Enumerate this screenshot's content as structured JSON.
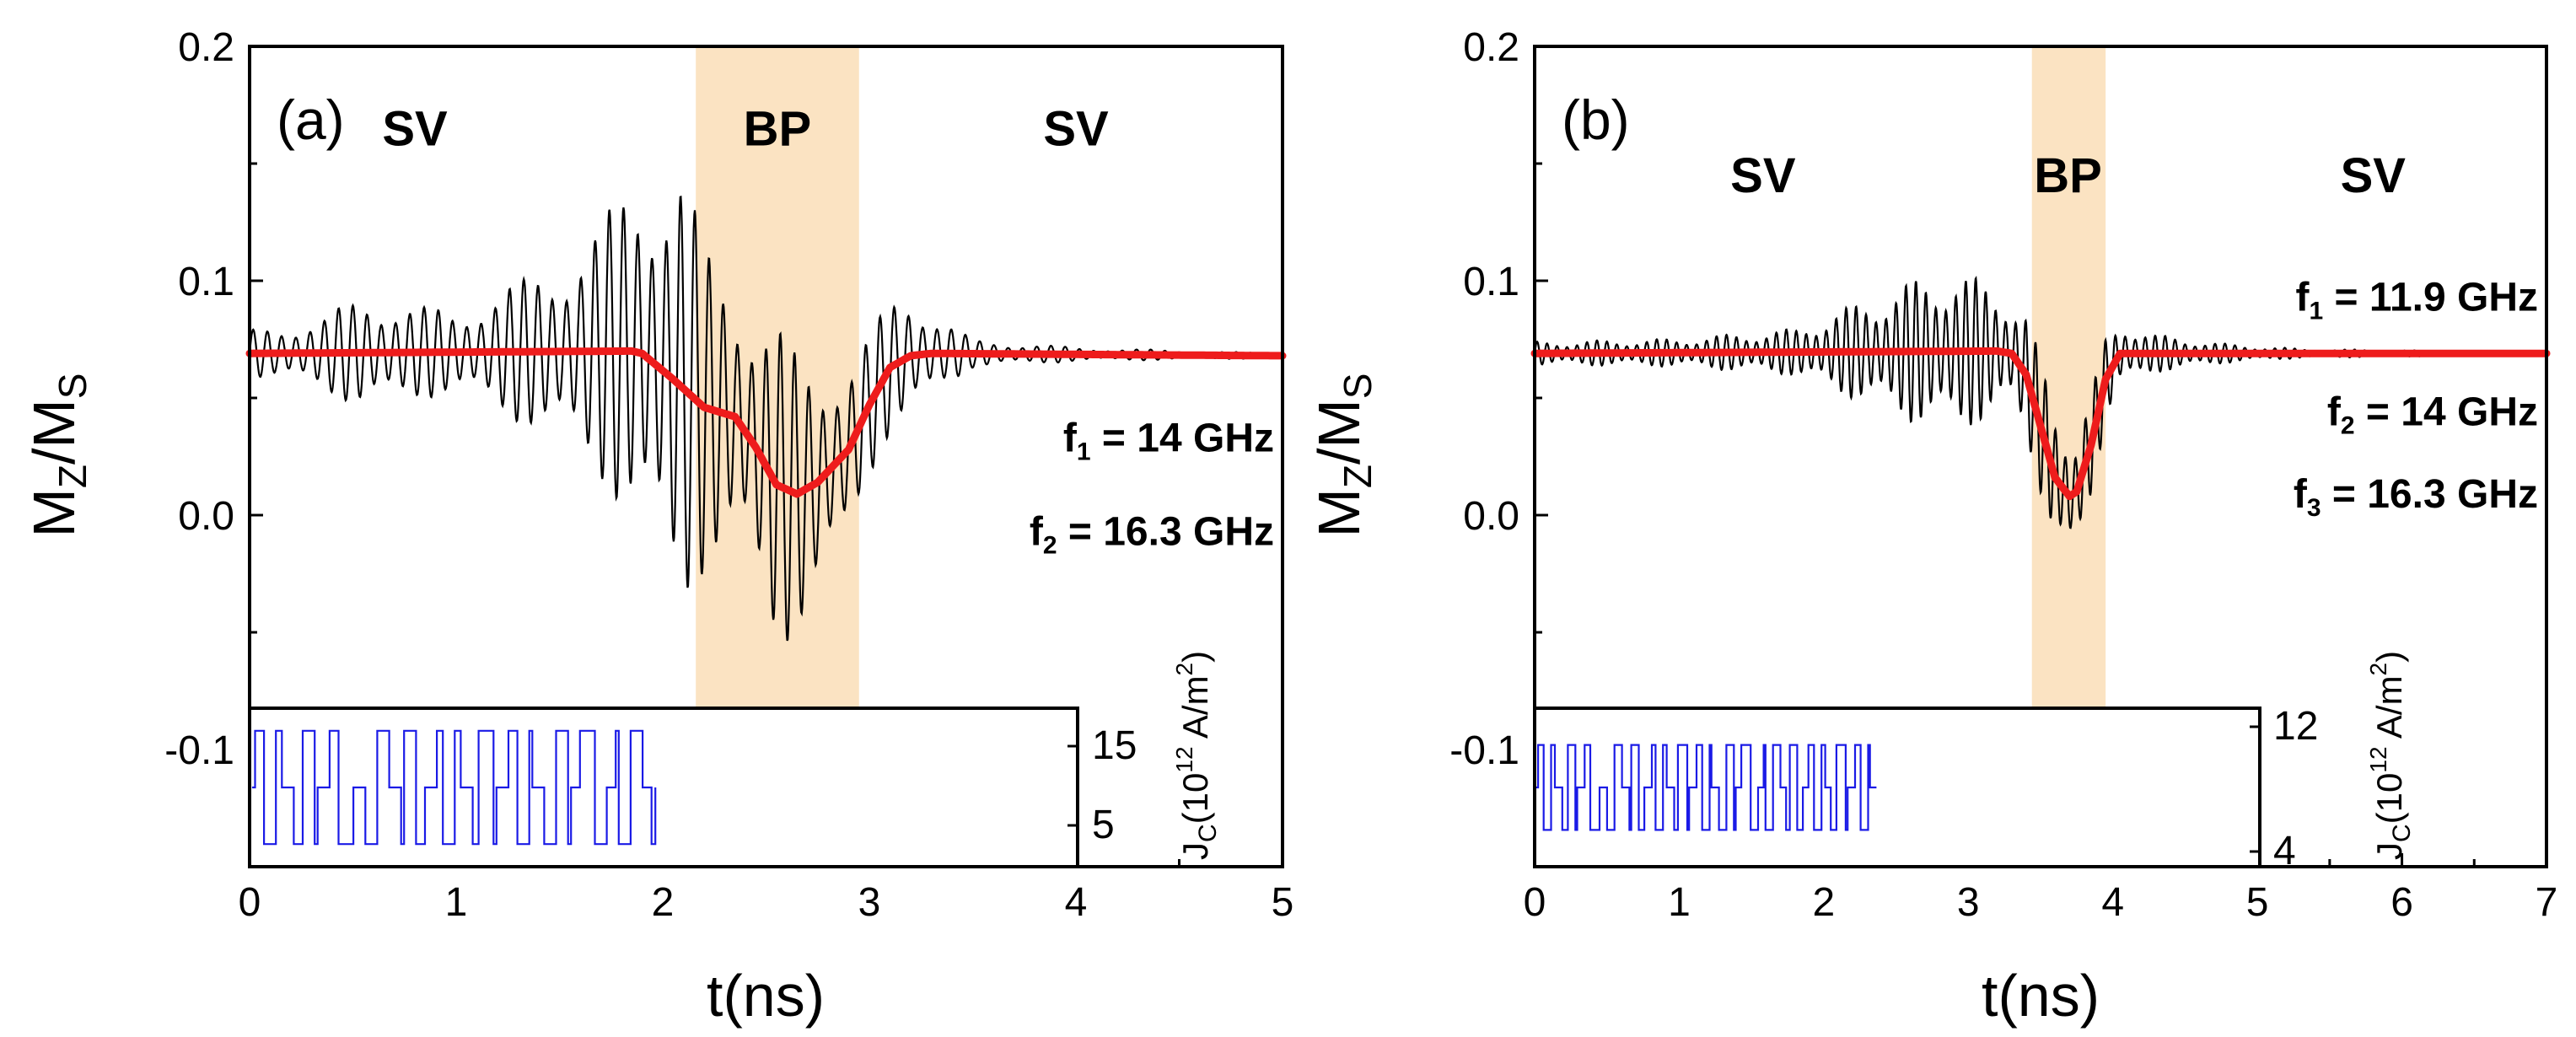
{
  "chart_data": [
    {
      "type": "line",
      "panel_label": "(a)",
      "xlabel": "t(ns)",
      "ylabel": "M",
      "ylabel_sub1": "Z",
      "ylabel_sep": "/M",
      "ylabel_sub2": "S",
      "xlim": [
        0,
        5
      ],
      "ylim": [
        -0.15,
        0.2
      ],
      "x_ticks": [
        {
          "value": 0,
          "label": "0"
        },
        {
          "value": 1,
          "label": "1"
        },
        {
          "value": 2,
          "label": "2"
        },
        {
          "value": 3,
          "label": "3"
        },
        {
          "value": 4,
          "label": "4"
        },
        {
          "value": 5,
          "label": "5"
        }
      ],
      "y_ticks": [
        {
          "value": 0.2,
          "label": "0.2"
        },
        {
          "value": 0.1,
          "label": "0.1"
        },
        {
          "value": 0.0,
          "label": "0.0"
        },
        {
          "value": -0.1,
          "label": "-0.1"
        }
      ],
      "band": {
        "start": 2.16,
        "end": 2.95,
        "color": "#fbe3c2"
      },
      "regions": [
        {
          "label": "SV",
          "x": 0.8,
          "y": 0.165
        },
        {
          "label": "BP",
          "x": 2.555,
          "y": 0.165
        },
        {
          "label": "SV",
          "x": 4.0,
          "y": 0.165
        }
      ],
      "frequencies": [
        {
          "label": "f",
          "sub": "1",
          "text": " = 14 GHz",
          "y": 0.033
        },
        {
          "label": "f",
          "sub": "2",
          "text": " = 16.3 GHz",
          "y": -0.007
        }
      ],
      "series": [
        {
          "name": "average",
          "color": "#ee1c1c",
          "points": [
            [
              0,
              0.069
            ],
            [
              1.85,
              0.07
            ],
            [
              1.9,
              0.069
            ],
            [
              2.05,
              0.058
            ],
            [
              2.2,
              0.046
            ],
            [
              2.35,
              0.042
            ],
            [
              2.45,
              0.029
            ],
            [
              2.55,
              0.013
            ],
            [
              2.65,
              0.009
            ],
            [
              2.75,
              0.014
            ],
            [
              2.9,
              0.028
            ],
            [
              3.0,
              0.047
            ],
            [
              3.1,
              0.063
            ],
            [
              3.2,
              0.068
            ],
            [
              3.3,
              0.069
            ],
            [
              5,
              0.068
            ]
          ]
        },
        {
          "name": "oscillation",
          "color": "#000000",
          "carrier_GHz": 14.5,
          "envelope": [
            [
              0,
              0.01
            ],
            [
              0.35,
              0.015
            ],
            [
              0.55,
              0.025
            ],
            [
              0.8,
              0.02
            ],
            [
              1.0,
              0.018
            ],
            [
              1.3,
              0.03
            ],
            [
              1.5,
              0.04
            ],
            [
              1.7,
              0.055
            ],
            [
              1.85,
              0.075
            ],
            [
              2.0,
              0.095
            ],
            [
              2.08,
              0.1
            ],
            [
              2.2,
              0.07
            ],
            [
              2.4,
              0.06
            ],
            [
              2.55,
              0.07
            ],
            [
              2.7,
              0.055
            ],
            [
              2.85,
              0.045
            ],
            [
              3.0,
              0.03
            ],
            [
              3.2,
              0.028
            ],
            [
              3.35,
              0.015
            ],
            [
              3.5,
              0.006
            ],
            [
              4.0,
              0.003
            ],
            [
              5.0,
              0.001
            ]
          ],
          "note": "fast oscillation around the average curve"
        }
      ],
      "inset": {
        "ylabel": "J",
        "ylabel_sub": "C",
        "ylabel_rest": "(10",
        "ylabel_exp": "12",
        "ylabel_unit": " A/m",
        "ylabel_unit_exp": "2",
        "ylabel_close": ")",
        "ylim": [
          0,
          20
        ],
        "y_ticks": [
          {
            "value": 15,
            "label": "15"
          },
          {
            "value": 5,
            "label": "5"
          }
        ],
        "color": "#1a1ae6",
        "signal_end_ns": 2.45,
        "levels": [
          2,
          10,
          18
        ]
      }
    },
    {
      "type": "line",
      "panel_label": "(b)",
      "xlabel": "t(ns)",
      "ylabel": "M",
      "ylabel_sub1": "Z",
      "ylabel_sep": "/M",
      "ylabel_sub2": "S",
      "xlim": [
        0,
        7
      ],
      "ylim": [
        -0.15,
        0.2
      ],
      "x_ticks": [
        {
          "value": 0,
          "label": "0"
        },
        {
          "value": 1,
          "label": "1"
        },
        {
          "value": 2,
          "label": "2"
        },
        {
          "value": 3,
          "label": "3"
        },
        {
          "value": 4,
          "label": "4"
        },
        {
          "value": 5,
          "label": "5"
        },
        {
          "value": 6,
          "label": "6"
        },
        {
          "value": 7,
          "label": "7"
        }
      ],
      "y_ticks": [
        {
          "value": 0.2,
          "label": "0.2"
        },
        {
          "value": 0.1,
          "label": "0.1"
        },
        {
          "value": 0.0,
          "label": "0.0"
        },
        {
          "value": -0.1,
          "label": "-0.1"
        }
      ],
      "band": {
        "start": 3.44,
        "end": 3.95,
        "color": "#fbe3c2"
      },
      "regions": [
        {
          "label": "SV",
          "x": 1.58,
          "y": 0.145
        },
        {
          "label": "BP",
          "x": 3.69,
          "y": 0.145
        },
        {
          "label": "SV",
          "x": 5.8,
          "y": 0.145
        }
      ],
      "frequencies": [
        {
          "label": "f",
          "sub": "1",
          "text": " = 11.9 GHz",
          "y": 0.093
        },
        {
          "label": "f",
          "sub": "2",
          "text": " = 14 GHz",
          "y": 0.044
        },
        {
          "label": "f",
          "sub": "3",
          "text": " = 16.3 GHz",
          "y": 0.009
        }
      ],
      "series": [
        {
          "name": "average",
          "color": "#ee1c1c",
          "points": [
            [
              0,
              0.069
            ],
            [
              3.2,
              0.07
            ],
            [
              3.3,
              0.069
            ],
            [
              3.4,
              0.06
            ],
            [
              3.5,
              0.038
            ],
            [
              3.6,
              0.016
            ],
            [
              3.7,
              0.008
            ],
            [
              3.75,
              0.01
            ],
            [
              3.85,
              0.03
            ],
            [
              3.95,
              0.058
            ],
            [
              4.05,
              0.069
            ],
            [
              7,
              0.069
            ]
          ]
        },
        {
          "name": "oscillation",
          "color": "#000000",
          "carrier_GHz": 14.5,
          "envelope": [
            [
              0,
              0.005
            ],
            [
              1.0,
              0.006
            ],
            [
              1.8,
              0.01
            ],
            [
              2.2,
              0.02
            ],
            [
              2.6,
              0.03
            ],
            [
              2.9,
              0.035
            ],
            [
              3.1,
              0.03
            ],
            [
              3.3,
              0.025
            ],
            [
              3.45,
              0.028
            ],
            [
              3.6,
              0.03
            ],
            [
              3.8,
              0.025
            ],
            [
              4.0,
              0.015
            ],
            [
              4.3,
              0.008
            ],
            [
              4.8,
              0.004
            ],
            [
              5.3,
              0.002
            ],
            [
              7.0,
              0.0005
            ]
          ],
          "note": "fast oscillation around the average curve"
        }
      ],
      "inset": {
        "ylabel": "J",
        "ylabel_sub": "C",
        "ylabel_rest": "(10",
        "ylabel_exp": "12",
        "ylabel_unit": " A/m",
        "ylabel_unit_exp": "2",
        "ylabel_close": ")",
        "ylim": [
          3,
          13
        ],
        "y_ticks": [
          {
            "value": 12,
            "label": "12"
          },
          {
            "value": 4,
            "label": "4"
          }
        ],
        "color": "#1a1ae6",
        "signal_end_ns": 3.3,
        "levels": [
          5,
          8,
          11
        ]
      }
    }
  ]
}
